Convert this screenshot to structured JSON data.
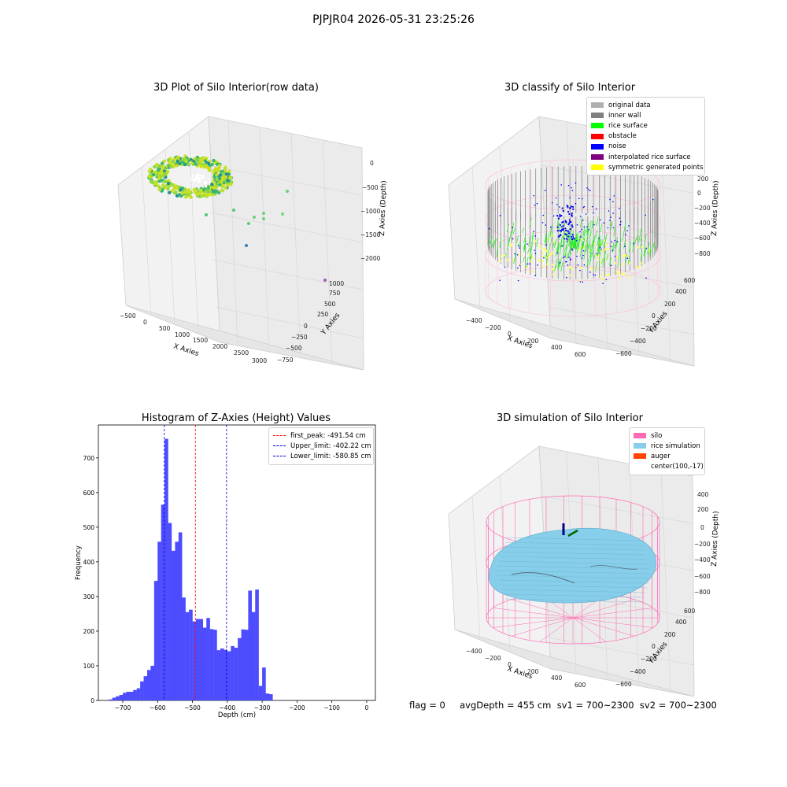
{
  "suptitle": "PJPJR04 2026-05-31 23:25:26",
  "footer": "flag = 0     avgDepth = 455 cm  sv1 = 700~2300  sv2 = 700~2300",
  "colors": {
    "histogram_bar": "#4d4dff",
    "first_peak_line": "#ff0000",
    "limit_lines": "#0000cc",
    "silo_wire": "#ff69b4",
    "rice_surface_sim": "#87ceeb"
  },
  "chart_data": [
    {
      "type": "scatter",
      "title": "3D Plot of Silo Interior(row data)",
      "projection": "3d",
      "xlabel": "X Axies",
      "ylabel": "Y Axies",
      "zlabel": "Z Axies (Depth)",
      "x_ticks": [
        "−500",
        "0",
        "500",
        "1000",
        "1500",
        "2000",
        "2500",
        "3000"
      ],
      "y_ticks": [
        "−750",
        "−500",
        "−250",
        "0",
        "250",
        "500",
        "750",
        "1000"
      ],
      "z_ticks": [
        "0",
        "−500",
        "−1000",
        "−1500",
        "−2000"
      ],
      "xlim": [
        -600,
        3100
      ],
      "ylim": [
        -800,
        1100
      ],
      "zlim": [
        -2300,
        0
      ],
      "colormap": "viridis",
      "outlier_points": [
        {
          "x": 2700,
          "y": 900,
          "z": -1850
        },
        {
          "x": 1900,
          "y": -250,
          "z": -1700
        },
        {
          "x": 2000,
          "y": 200,
          "z": -1300
        },
        {
          "x": 1300,
          "y": -300,
          "z": -1200
        },
        {
          "x": 1600,
          "y": -200,
          "z": -1150
        }
      ]
    },
    {
      "type": "scatter",
      "title": "3D classify of Silo Interior",
      "projection": "3d",
      "xlabel": "X Axies",
      "ylabel": "Y Axies",
      "zlabel": "Z Axies (Depth)",
      "x_ticks": [
        "−400",
        "−200",
        "0",
        "200",
        "400",
        "600"
      ],
      "y_ticks": [
        "−600",
        "−400",
        "−200",
        "0",
        "200",
        "400",
        "600"
      ],
      "z_ticks": [
        "200",
        "0",
        "−200",
        "−400",
        "−600",
        "−800"
      ],
      "legend": [
        "original data",
        "inner wall",
        "rice surface",
        "obstacle",
        "noise",
        "interpolated rice surface",
        "symmetric generated points"
      ],
      "legend_colors": [
        "#b0b0b0",
        "#808080",
        "#00ff00",
        "#ff0000",
        "#0000ff",
        "#800080",
        "#ffff00"
      ],
      "legend_position": "top-right"
    },
    {
      "type": "bar",
      "title": "Histogram of Z-Axies (Height) Values",
      "xlabel": "Depth (cm)",
      "ylabel": "Frequency",
      "xlim": [
        -770,
        25
      ],
      "ylim": [
        0,
        795
      ],
      "x_ticks": [
        -700,
        -600,
        -500,
        -400,
        -300,
        -200,
        -100,
        0
      ],
      "x_tick_labels": [
        "−700",
        "−600",
        "−500",
        "−400",
        "−300",
        "−200",
        "−100",
        "0"
      ],
      "y_ticks": [
        0,
        100,
        200,
        300,
        400,
        500,
        600,
        700
      ],
      "bin_start": -740,
      "bin_width": 10,
      "values": [
        3,
        8,
        12,
        16,
        22,
        25,
        25,
        30,
        35,
        55,
        70,
        88,
        100,
        345,
        458,
        565,
        755,
        512,
        432,
        458,
        485,
        297,
        255,
        262,
        228,
        235,
        235,
        210,
        238,
        206,
        204,
        145,
        150,
        146,
        142,
        157,
        152,
        180,
        205,
        204,
        317,
        255,
        320,
        42,
        95,
        20,
        18
      ],
      "vlines": [
        {
          "label": "first_peak: -491.54 cm",
          "x": -491.54,
          "color": "#ff0000"
        },
        {
          "label": "Upper_limit: -402.22 cm",
          "x": -402.22,
          "color": "#0000cc"
        },
        {
          "label": "Lower_limit: -580.85 cm",
          "x": -580.85,
          "color": "#0000cc"
        }
      ],
      "legend_position": "top-right"
    },
    {
      "type": "surface",
      "title": "3D simulation of Silo Interior",
      "projection": "3d",
      "xlabel": "X Axies",
      "ylabel": "Y Axies",
      "zlabel": "Z Axies (Depth)",
      "x_ticks": [
        "−400",
        "−200",
        "0",
        "200",
        "400",
        "600"
      ],
      "y_ticks": [
        "−600",
        "−400",
        "−200",
        "0",
        "200",
        "400",
        "600"
      ],
      "z_ticks": [
        "400",
        "200",
        "0",
        "−200",
        "−400",
        "−600",
        "−800"
      ],
      "legend": [
        "silo",
        "rice simulation",
        "auger",
        "center(100,-17)"
      ],
      "legend_colors": [
        "#ff69b4",
        "#87ceeb",
        "#ff4500",
        ""
      ],
      "legend_position": "top-right"
    }
  ]
}
